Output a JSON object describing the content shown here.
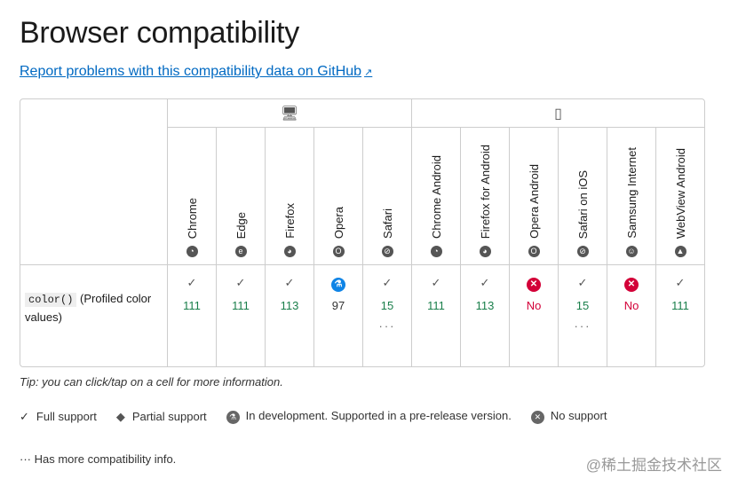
{
  "title": "Browser compatibility",
  "report_link": "Report problems with this compatibility data on GitHub",
  "platforms": {
    "desktop": "desktop-icon",
    "mobile": "mobile-icon"
  },
  "browsers": [
    "Chrome",
    "Edge",
    "Firefox",
    "Opera",
    "Safari",
    "Chrome Android",
    "Firefox for Android",
    "Opera Android",
    "Safari on iOS",
    "Samsung Internet",
    "WebView Android"
  ],
  "feature": {
    "code": "color()",
    "label": "(Profiled color values)"
  },
  "support": [
    {
      "status": "full",
      "version": "111"
    },
    {
      "status": "full",
      "version": "111"
    },
    {
      "status": "full",
      "version": "113"
    },
    {
      "status": "preview",
      "version": "97"
    },
    {
      "status": "full",
      "version": "15",
      "more": "···"
    },
    {
      "status": "full",
      "version": "111"
    },
    {
      "status": "full",
      "version": "113"
    },
    {
      "status": "none",
      "version": "No"
    },
    {
      "status": "full",
      "version": "15",
      "more": "···"
    },
    {
      "status": "none",
      "version": "No"
    },
    {
      "status": "full",
      "version": "111"
    }
  ],
  "tip": "Tip: you can click/tap on a cell for more information.",
  "legend": {
    "full": "Full support",
    "partial": "Partial support",
    "dev": "In development. Supported in a pre-release version.",
    "none": "No support"
  },
  "more_info": "Has more compatibility info.",
  "more_glyph": "···",
  "watermark": "@稀土掘金技术社区",
  "colors": {
    "yes": "#1a7f4b",
    "no": "#d30038",
    "preview": "#0f84e6",
    "link": "#0069c2"
  }
}
